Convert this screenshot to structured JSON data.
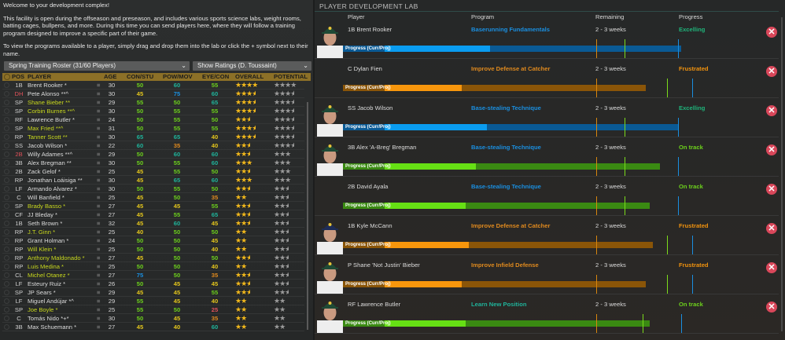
{
  "intro": {
    "welcome": "Welcome to your development complex!",
    "p1": "This facility is open during the offseason and preseason, and includes various sports science labs, weight rooms, batting cages, bullpens, and more. During this time you can send players here, where they will follow a training program designed to improve a specific part of their game.",
    "p2": "To view the programs available to a player, simply drag and drop them into the lab or click the + symbol next to their name."
  },
  "roster_select": "Spring Training Roster (31/60 Players)",
  "ratings_select": "Show Ratings (D. Toussaint)",
  "columns": [
    "POS",
    "PLAYER",
    "AGE",
    "CON/STU",
    "POW/MOV",
    "EYE/CON",
    "OVERALL",
    "POTENTIAL"
  ],
  "colors": {
    "header": "#8c7027",
    "pitcher_name": "#c8d81e",
    "pos_alert": "#e0525a",
    "r25": "#e0525a",
    "r35": "#e08a1e",
    "r40": "#e3c51c",
    "r50": "#6ccf1c",
    "r60": "#1fb39a",
    "r75": "#1a8fe0",
    "star_gold": "#f2b81b",
    "star_grey": "#9a9a9a"
  },
  "roster": [
    [
      "1B",
      "Brent Rooker *",
      false,
      false,
      30,
      50,
      60,
      55,
      4,
      4
    ],
    [
      "DH",
      "Pete Alonso **^",
      false,
      true,
      30,
      45,
      75,
      60,
      3.5,
      3.5
    ],
    [
      "SP",
      "Shane Bieber **",
      true,
      false,
      29,
      55,
      50,
      65,
      3.5,
      3.5
    ],
    [
      "SP",
      "Corbin Burnes **^",
      true,
      false,
      30,
      50,
      55,
      55,
      3.5,
      3.5
    ],
    [
      "RF",
      "Lawrence Butler *",
      false,
      false,
      24,
      50,
      55,
      50,
      2.5,
      3.5
    ],
    [
      "SP",
      "Max Fried **^",
      true,
      false,
      31,
      50,
      55,
      55,
      3.5,
      3.5
    ],
    [
      "RP",
      "Tanner Scott **",
      true,
      false,
      30,
      65,
      65,
      40,
      3.5,
      3.5
    ],
    [
      "SS",
      "Jacob Wilson *",
      false,
      false,
      22,
      60,
      35,
      40,
      2.5,
      3.5
    ],
    [
      "2B",
      "Willy Adames **^",
      false,
      true,
      29,
      50,
      60,
      60,
      2.5,
      3
    ],
    [
      "3B",
      "Alex Bregman **",
      false,
      false,
      30,
      50,
      55,
      60,
      3,
      3
    ],
    [
      "2B",
      "Zack Gelof *",
      false,
      false,
      25,
      45,
      55,
      50,
      2.5,
      3
    ],
    [
      "RP",
      "Jonathan Loáisiga **",
      false,
      false,
      30,
      45,
      65,
      60,
      3,
      3
    ],
    [
      "LF",
      "Armando Alvarez *",
      false,
      false,
      30,
      50,
      55,
      50,
      2.5,
      2.5
    ],
    [
      "C",
      "Will Banfield *",
      false,
      false,
      25,
      45,
      50,
      35,
      2,
      2.5
    ],
    [
      "SP",
      "Brady Basso *",
      true,
      false,
      27,
      45,
      45,
      55,
      2.5,
      2.5
    ],
    [
      "CF",
      "JJ Bleday *",
      false,
      false,
      27,
      45,
      55,
      65,
      2.5,
      2.5
    ],
    [
      "1B",
      "Seth Brown *",
      false,
      false,
      32,
      45,
      60,
      45,
      2.5,
      2.5
    ],
    [
      "RP",
      "J.T. Ginn *",
      true,
      false,
      25,
      40,
      50,
      50,
      2,
      2.5
    ],
    [
      "RP",
      "Grant Holman *",
      false,
      false,
      24,
      50,
      50,
      45,
      2,
      2.5
    ],
    [
      "RP",
      "Will Klein *",
      true,
      false,
      25,
      50,
      50,
      40,
      2,
      2.5
    ],
    [
      "RP",
      "Anthony Maldonado *",
      true,
      false,
      27,
      45,
      50,
      50,
      2.5,
      2.5
    ],
    [
      "RP",
      "Luis Medina *",
      true,
      false,
      25,
      50,
      50,
      40,
      2,
      2.5
    ],
    [
      "CL",
      "Michel Otanez *",
      true,
      false,
      27,
      75,
      50,
      35,
      2.5,
      2.5
    ],
    [
      "LF",
      "Esteury Ruiz *",
      false,
      false,
      26,
      50,
      45,
      45,
      2.5,
      2.5
    ],
    [
      "SP",
      "JP Sears *",
      false,
      false,
      29,
      45,
      45,
      55,
      2.5,
      2.5
    ],
    [
      "LF",
      "Miguel Andújar *^",
      false,
      false,
      29,
      55,
      45,
      40,
      2,
      2
    ],
    [
      "SP",
      "Joe Boyle *",
      true,
      false,
      25,
      55,
      50,
      25,
      2,
      2
    ],
    [
      "C",
      "Tomás Nido *+*",
      false,
      false,
      30,
      50,
      45,
      35,
      2,
      2
    ],
    [
      "3B",
      "Max Schuemann *",
      false,
      false,
      27,
      45,
      40,
      60,
      2,
      2
    ]
  ],
  "lab": {
    "title": "PLAYER DEVELOPMENT LAB",
    "columns": {
      "player": "Player",
      "program": "Program",
      "remaining": "Remaining",
      "progress": "Progress"
    },
    "bar_label": "Progress (Curr/Proj)",
    "status_colors": {
      "Excelling": "#1fb37a",
      "Frustrated": "#f0920e",
      "On track": "#6cd01c"
    },
    "bar_colors": {
      "Excelling": [
        "#0a9cf0",
        "#0a5a95"
      ],
      "Frustrated": [
        "#f7960c",
        "#8a5508"
      ],
      "On track": [
        "#66e014",
        "#3a8a12"
      ]
    },
    "marker_colors": [
      "#d8860e",
      "#7cdc1c",
      "#1a8fe0"
    ],
    "entries": [
      {
        "player": "1B Brent Rooker",
        "program": "Baserunning Fundamentals",
        "program_color": "#1a8fe0",
        "remaining": "2 - 3 weeks",
        "status": "Excelling",
        "current": 30,
        "projected": 84,
        "markers": [
          60,
          68,
          83
        ],
        "photo": "green"
      },
      {
        "player": "C Dylan Fien",
        "program": "Improve Defense at Catcher",
        "program_color": "#e08a1e",
        "remaining": "2 - 3 weeks",
        "status": "Frustrated",
        "current": 22,
        "projected": 74,
        "markers": [
          60,
          80,
          87
        ],
        "photo": null
      },
      {
        "player": "SS Jacob Wilson",
        "program": "Base-stealing Technique",
        "program_color": "#1a8fe0",
        "remaining": "2 - 3 weeks",
        "status": "Excelling",
        "current": 29,
        "projected": 83,
        "markers": [
          60,
          68,
          83
        ],
        "photo": "green"
      },
      {
        "player": "3B Alex 'A-Breg' Bregman",
        "program": "Base-stealing Technique",
        "program_color": "#1a8fe0",
        "remaining": "2 - 3 weeks",
        "status": "On track",
        "current": 26,
        "projected": 78,
        "markers": [
          60,
          68,
          83
        ],
        "photo": "green"
      },
      {
        "player": "2B David Ayala",
        "program": "Base-stealing Technique",
        "program_color": "#1a8fe0",
        "remaining": "2 - 3 weeks",
        "status": "On track",
        "current": 23,
        "projected": 75,
        "markers": [
          60,
          68,
          83
        ],
        "photo": null
      },
      {
        "player": "1B Kyle McCann",
        "program": "Improve Defense at Catcher",
        "program_color": "#e08a1e",
        "remaining": "2 - 3 weeks",
        "status": "Frustrated",
        "current": 24,
        "projected": 76,
        "markers": [
          60,
          80,
          87
        ],
        "photo": "navy"
      },
      {
        "player": "P Shane 'Not Justin' Bieber",
        "program": "Improve Infield Defense",
        "program_color": "#e08a1e",
        "remaining": "2 - 3 weeks",
        "status": "Frustrated",
        "current": 22,
        "projected": 74,
        "markers": [
          60,
          80,
          87
        ],
        "photo": "green"
      },
      {
        "player": "RF Lawrence Butler",
        "program": "Learn New Position",
        "program_color": "#1fb39a",
        "remaining": "2 - 3 weeks",
        "status": "On track",
        "current": 23,
        "projected": 75,
        "markers": [
          60,
          73,
          84
        ],
        "photo": "green"
      }
    ]
  }
}
